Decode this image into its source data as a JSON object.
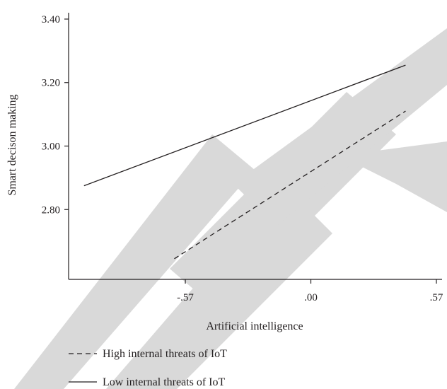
{
  "chart_data": {
    "type": "line",
    "xlabel": "Artificial intelligence",
    "ylabel": "Smart decison making",
    "x_ticks": [
      {
        "value": -0.57,
        "label": "-.57"
      },
      {
        "value": 0.0,
        "label": ".00"
      },
      {
        "value": 0.57,
        "label": ".57"
      }
    ],
    "y_ticks": [
      {
        "value": 2.8,
        "label": "2.80"
      },
      {
        "value": 3.0,
        "label": "3.00"
      },
      {
        "value": 3.2,
        "label": "3.20"
      },
      {
        "value": 3.4,
        "label": "3.40"
      }
    ],
    "xlim": [
      -1.1,
      0.57
    ],
    "ylim": [
      2.58,
      3.42
    ],
    "grid": false,
    "legend_position": "bottom-left",
    "series": [
      {
        "name": "High internal threats of IoT",
        "style": "dashed",
        "color": "#231f20",
        "x": [
          -0.62,
          0.43
        ],
        "y": [
          2.645,
          3.11
        ]
      },
      {
        "name": "Low internal threats of IoT",
        "style": "solid",
        "color": "#231f20",
        "x": [
          -1.03,
          0.43
        ],
        "y": [
          2.875,
          3.255
        ]
      }
    ]
  }
}
